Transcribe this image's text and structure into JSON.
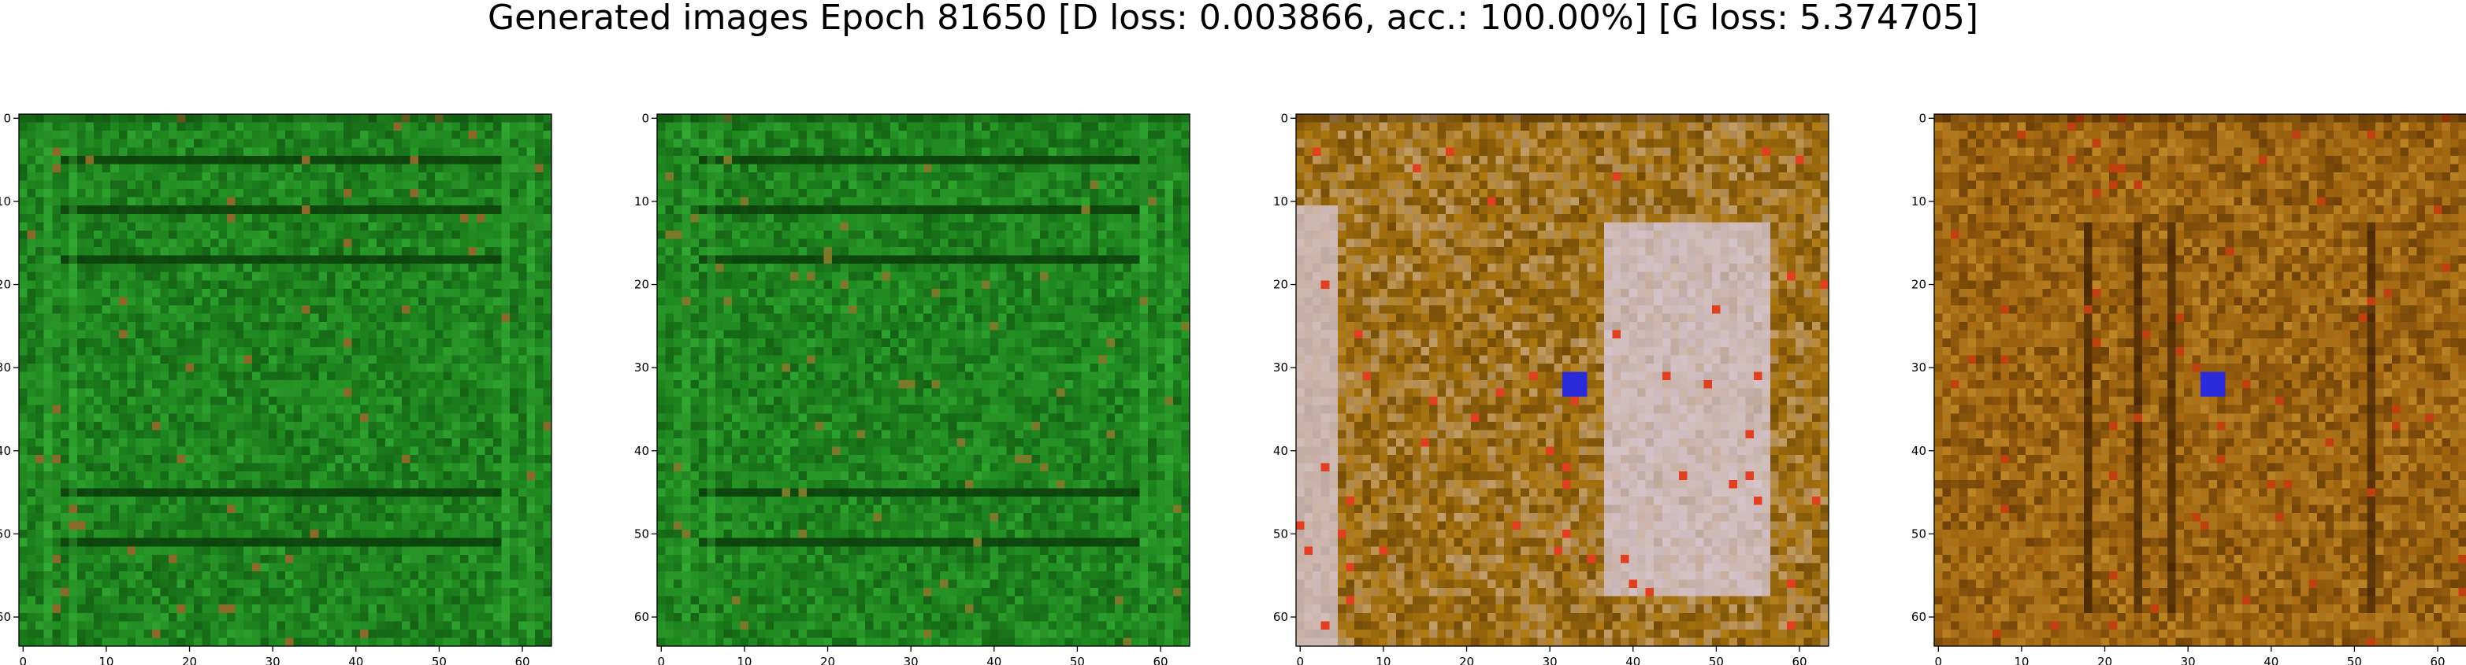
{
  "figure": {
    "title": "Generated images Epoch 81650 [D loss: 0.003866, acc.: 100.00%] [G loss: 5.374705]"
  },
  "chart_data": [
    {
      "type": "heatmap",
      "image_index": 1,
      "xlim": [
        -0.5,
        63.5
      ],
      "ylim": [
        63.5,
        -0.5
      ],
      "xticks": [
        "0",
        "10",
        "20",
        "30",
        "40",
        "50",
        "60"
      ],
      "yticks": [
        "0",
        "10",
        "20",
        "30",
        "40",
        "50",
        "60"
      ],
      "palette": {
        "base": "#1f8a1f",
        "dark": "#0b3d0b",
        "light": "#3fbf3f",
        "accent": "#8a6a2a"
      },
      "features": {
        "horizontal_dark_lines_rows": [
          5,
          11,
          17,
          45,
          51
        ],
        "vertical_bands_cols": [
          3,
          6,
          58,
          61
        ]
      }
    },
    {
      "type": "heatmap",
      "image_index": 2,
      "xlim": [
        -0.5,
        63.5
      ],
      "ylim": [
        63.5,
        -0.5
      ],
      "xticks": [
        "0",
        "10",
        "20",
        "30",
        "40",
        "50",
        "60"
      ],
      "yticks": [
        "0",
        "10",
        "20",
        "30",
        "40",
        "50",
        "60"
      ],
      "palette": {
        "base": "#1f8a1f",
        "dark": "#0b3d0b",
        "light": "#3fbf3f",
        "accent": "#7a7a2a"
      },
      "features": {
        "horizontal_dark_lines_rows": [
          5,
          11,
          17,
          45,
          51
        ],
        "vertical_bands_cols": [
          3,
          6,
          58,
          61
        ]
      }
    },
    {
      "type": "heatmap",
      "image_index": 3,
      "xlim": [
        -0.5,
        63.5
      ],
      "ylim": [
        63.5,
        -0.5
      ],
      "xticks": [
        "0",
        "10",
        "20",
        "30",
        "40",
        "50",
        "60"
      ],
      "yticks": [
        "0",
        "10",
        "20",
        "30",
        "40",
        "50",
        "60"
      ],
      "palette": {
        "base": "#b07a10",
        "dark": "#3a2000",
        "light": "#d8c8d8",
        "accent": "#e04020",
        "blue": "#2a2ad8"
      },
      "features": {
        "light_region_cols": [
          0,
          4
        ],
        "light_region_cols_2": [
          37,
          56
        ],
        "blue_spot": [
          33,
          32
        ]
      }
    },
    {
      "type": "heatmap",
      "image_index": 4,
      "xlim": [
        -0.5,
        63.5
      ],
      "ylim": [
        63.5,
        -0.5
      ],
      "xticks": [
        "0",
        "10",
        "20",
        "30",
        "40",
        "50",
        "60"
      ],
      "yticks": [
        "0",
        "10",
        "20",
        "30",
        "40",
        "50",
        "60"
      ],
      "palette": {
        "base": "#a86a10",
        "dark": "#3a1c00",
        "light": "#d8a840",
        "accent": "#c04010",
        "blue": "#2a2ad8"
      },
      "features": {
        "blue_spot": [
          33,
          32
        ],
        "vertical_dark_cols": [
          18,
          24,
          28,
          52
        ]
      }
    }
  ]
}
